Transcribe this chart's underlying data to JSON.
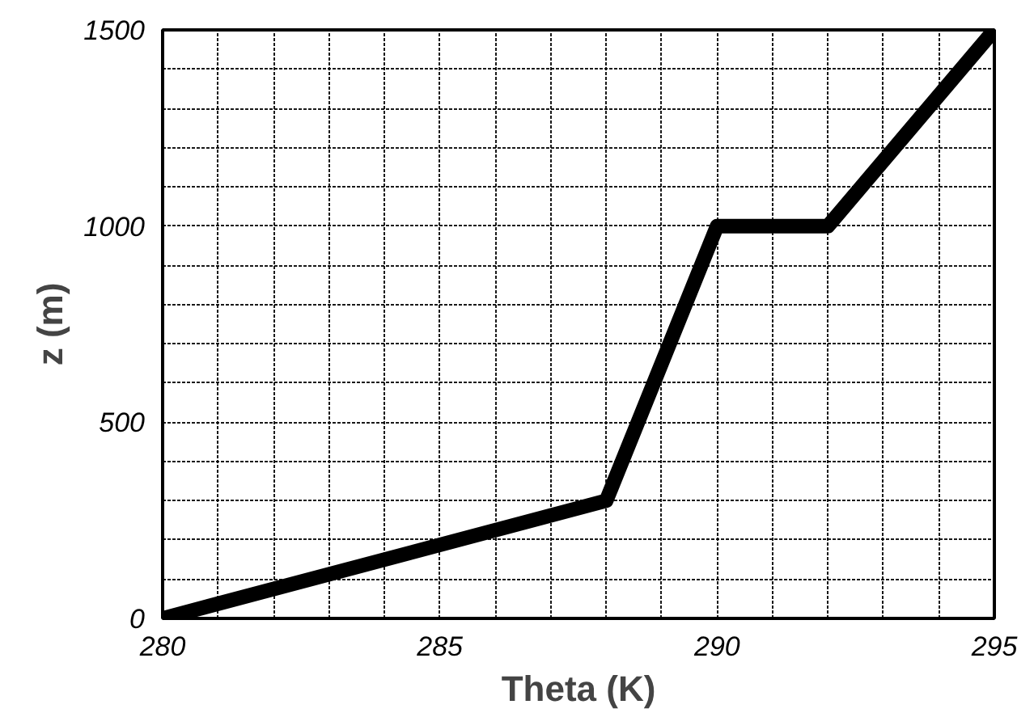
{
  "chart_data": {
    "type": "line",
    "xlabel": "Theta (K)",
    "ylabel": "z (m)",
    "x": [
      280,
      288,
      290,
      292,
      295
    ],
    "series": [
      {
        "color": "#000000",
        "values": [
          0,
          300,
          1000,
          1000,
          1500
        ]
      }
    ],
    "xlim": [
      280,
      295
    ],
    "ylim": [
      0,
      1500
    ],
    "xticks": [
      280,
      {
        "value": 281,
        "label": null
      },
      {
        "value": 282,
        "label": null
      },
      {
        "value": 283,
        "label": null
      },
      {
        "value": 284,
        "label": null
      },
      285,
      {
        "value": 286,
        "label": null
      },
      {
        "value": 287,
        "label": null
      },
      {
        "value": 288,
        "label": null
      },
      {
        "value": 289,
        "label": null
      },
      290,
      {
        "value": 291,
        "label": null
      },
      {
        "value": 292,
        "label": null
      },
      {
        "value": 293,
        "label": null
      },
      {
        "value": 294,
        "label": null
      },
      295
    ],
    "yticks": [
      0,
      {
        "value": 100,
        "label": null
      },
      {
        "value": 200,
        "label": null
      },
      {
        "value": 300,
        "label": null
      },
      {
        "value": 400,
        "label": null
      },
      500,
      {
        "value": 600,
        "label": null
      },
      {
        "value": 700,
        "label": null
      },
      {
        "value": 800,
        "label": null
      },
      {
        "value": 900,
        "label": null
      },
      1000,
      {
        "value": 1100,
        "label": null
      },
      {
        "value": 1200,
        "label": null
      },
      {
        "value": 1300,
        "label": null
      },
      {
        "value": 1400,
        "label": null
      },
      1500
    ],
    "grid": true,
    "marker": "none",
    "line_style": "solid"
  }
}
